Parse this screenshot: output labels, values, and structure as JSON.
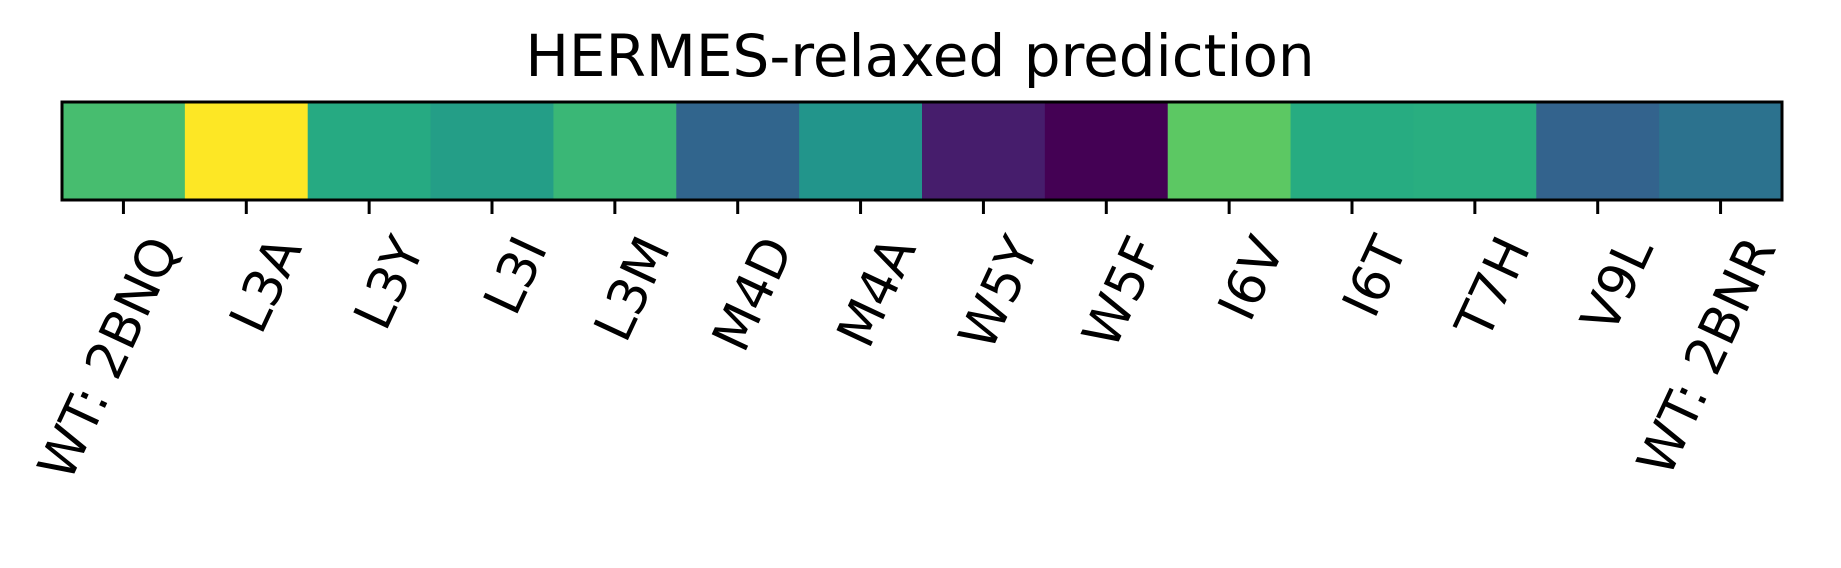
{
  "chart_data": {
    "type": "heatmap",
    "title": "HERMES-relaxed prediction",
    "xlabel": "",
    "ylabel": "",
    "colormap": "viridis",
    "grid": false,
    "legend": "none",
    "categories": [
      "WT: 2BNQ",
      "L3A",
      "L3Y",
      "L3I",
      "L3M",
      "M4D",
      "M4A",
      "W5Y",
      "W5F",
      "I6V",
      "I6T",
      "T7H",
      "V9L",
      "WT: 2BNR"
    ],
    "values": [
      0.7,
      1.0,
      0.61,
      0.56,
      0.67,
      0.33,
      0.52,
      0.08,
      0.0,
      0.75,
      0.62,
      0.63,
      0.32,
      0.38
    ]
  }
}
